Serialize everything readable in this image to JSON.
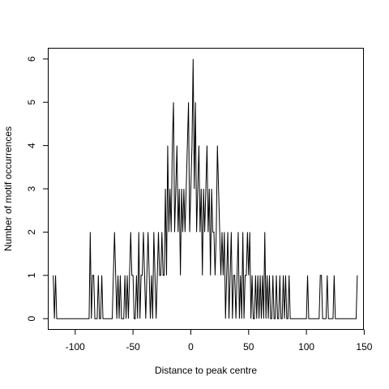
{
  "chart_data": {
    "type": "line",
    "title": "",
    "xlabel": "Distance to peak centre",
    "ylabel": "Number of motif occurrences",
    "xlim": [
      -123,
      149
    ],
    "ylim": [
      -0.24,
      6.24
    ],
    "xticks": [
      -100,
      -50,
      0,
      50,
      100,
      150
    ],
    "yticks": [
      0,
      1,
      2,
      3,
      4,
      5,
      6
    ],
    "xtick_labels": [
      "-100",
      "-50",
      "0",
      "50",
      "100",
      "150"
    ],
    "ytick_labels": [
      "0",
      "1",
      "2",
      "3",
      "4",
      "5",
      "6"
    ],
    "grid": false,
    "legend": "none",
    "line_color": "#000000",
    "x_range": [
      -119,
      144
    ],
    "series": [
      {
        "nonzero_points": [
          [
            -119,
            1
          ],
          [
            -117,
            1
          ],
          [
            -87,
            2
          ],
          [
            -85,
            1
          ],
          [
            -84,
            1
          ],
          [
            -80,
            1
          ],
          [
            -77,
            1
          ],
          [
            -67,
            1
          ],
          [
            -66,
            2
          ],
          [
            -65,
            1
          ],
          [
            -63,
            1
          ],
          [
            -61,
            1
          ],
          [
            -57,
            1
          ],
          [
            -55,
            1
          ],
          [
            -53,
            1
          ],
          [
            -52,
            2
          ],
          [
            -51,
            1
          ],
          [
            -50,
            1
          ],
          [
            -47,
            1
          ],
          [
            -45,
            2
          ],
          [
            -43,
            1
          ],
          [
            -42,
            1
          ],
          [
            -41,
            2
          ],
          [
            -40,
            1
          ],
          [
            -38,
            1
          ],
          [
            -37,
            2
          ],
          [
            -36,
            1
          ],
          [
            -34,
            1
          ],
          [
            -32,
            2
          ],
          [
            -31,
            1
          ],
          [
            -29,
            1
          ],
          [
            -28,
            2
          ],
          [
            -27,
            1
          ],
          [
            -26,
            1
          ],
          [
            -25,
            2
          ],
          [
            -24,
            1
          ],
          [
            -23,
            1
          ],
          [
            -22,
            3
          ],
          [
            -21,
            1
          ],
          [
            -20,
            4
          ],
          [
            -19,
            2
          ],
          [
            -18,
            3
          ],
          [
            -17,
            2
          ],
          [
            -16,
            4
          ],
          [
            -15,
            5
          ],
          [
            -14,
            2
          ],
          [
            -13,
            3
          ],
          [
            -12,
            4
          ],
          [
            -11,
            2
          ],
          [
            -10,
            3
          ],
          [
            -9,
            1
          ],
          [
            -8,
            3
          ],
          [
            -7,
            2
          ],
          [
            -6,
            3
          ],
          [
            -5,
            2
          ],
          [
            -4,
            3
          ],
          [
            -3,
            4
          ],
          [
            -2,
            5
          ],
          [
            -1,
            2
          ],
          [
            0,
            3
          ],
          [
            1,
            4
          ],
          [
            2,
            6
          ],
          [
            3,
            3
          ],
          [
            4,
            5
          ],
          [
            5,
            2
          ],
          [
            6,
            3
          ],
          [
            7,
            4
          ],
          [
            8,
            2
          ],
          [
            9,
            3
          ],
          [
            10,
            1
          ],
          [
            11,
            3
          ],
          [
            12,
            2
          ],
          [
            13,
            3
          ],
          [
            14,
            4
          ],
          [
            15,
            2
          ],
          [
            16,
            3
          ],
          [
            17,
            1
          ],
          [
            18,
            3
          ],
          [
            19,
            2
          ],
          [
            20,
            2
          ],
          [
            21,
            1
          ],
          [
            22,
            2
          ],
          [
            23,
            4
          ],
          [
            24,
            3
          ],
          [
            25,
            2
          ],
          [
            26,
            1
          ],
          [
            27,
            2
          ],
          [
            28,
            1
          ],
          [
            29,
            2
          ],
          [
            31,
            1
          ],
          [
            32,
            2
          ],
          [
            34,
            1
          ],
          [
            35,
            2
          ],
          [
            37,
            1
          ],
          [
            38,
            1
          ],
          [
            40,
            1
          ],
          [
            41,
            2
          ],
          [
            43,
            1
          ],
          [
            45,
            2
          ],
          [
            47,
            1
          ],
          [
            48,
            1
          ],
          [
            49,
            2
          ],
          [
            50,
            1
          ],
          [
            51,
            2
          ],
          [
            53,
            1
          ],
          [
            56,
            1
          ],
          [
            58,
            1
          ],
          [
            60,
            1
          ],
          [
            62,
            1
          ],
          [
            64,
            2
          ],
          [
            66,
            1
          ],
          [
            68,
            1
          ],
          [
            71,
            1
          ],
          [
            74,
            1
          ],
          [
            77,
            1
          ],
          [
            80,
            1
          ],
          [
            82,
            1
          ],
          [
            85,
            1
          ],
          [
            101,
            1
          ],
          [
            112,
            1
          ],
          [
            113,
            1
          ],
          [
            118,
            1
          ],
          [
            124,
            1
          ],
          [
            144,
            1
          ]
        ]
      }
    ]
  }
}
